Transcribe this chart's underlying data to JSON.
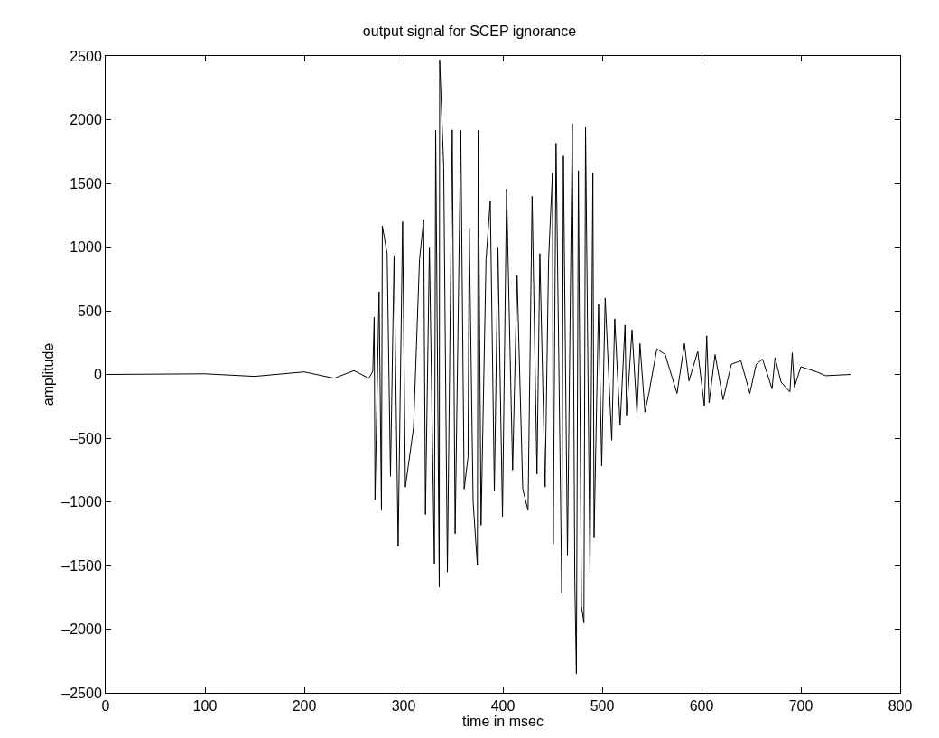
{
  "chart_data": {
    "type": "line",
    "title": "output signal for SCEP ignorance",
    "xlabel": "time in msec",
    "ylabel": "amplitude",
    "x": [
      0,
      100,
      150,
      200,
      230,
      250,
      265,
      269,
      270.4,
      271.2,
      275.3,
      277.7,
      278.6,
      283.4,
      286.8,
      290.4,
      294.5,
      299,
      301.8,
      310,
      316,
      320.2,
      322,
      326,
      331,
      332.3,
      335.9,
      336.3,
      340.4,
      344.1,
      349,
      351.9,
      357.6,
      361,
      364.9,
      366.1,
      370,
      374.3,
      375.1,
      378,
      383,
      387.3,
      391.4,
      395,
      399.6,
      403.7,
      409.8,
      414.3,
      420,
      425.3,
      429.4,
      434.3,
      437.2,
      442.5,
      446,
      449.9,
      450.7,
      453.5,
      459.3,
      460.9,
      465,
      469.9,
      472.4,
      474,
      476,
      479.1,
      481.6,
      483.2,
      487.7,
      490.6,
      491.8,
      496.3,
      499.5,
      503,
      509.6,
      512.6,
      518,
      523,
      524.5,
      530,
      535,
      538,
      543,
      547,
      555,
      563.4,
      575.3,
      582.8,
      587.3,
      596.2,
      602.8,
      605.2,
      607.6,
      613.6,
      621.7,
      630,
      639.6,
      648.6,
      655,
      661.4,
      671,
      674,
      680,
      689,
      691.3,
      693.5,
      700,
      716,
      725,
      750
    ],
    "series": [
      {
        "color": "#000000",
        "values": [
          0,
          5,
          -15,
          20,
          -30,
          30,
          -30,
          25,
          449,
          -983,
          649,
          -1067,
          1165,
          948,
          -800,
          931,
          -1350,
          1199,
          -884,
          -418,
          900,
          1216,
          -1100,
          1000,
          -1485,
          1915,
          -1668,
          2470,
          1631,
          -1551,
          1920,
          -1250,
          1915,
          -900,
          -650,
          1149,
          -1000,
          -1500,
          1915,
          -1184,
          900,
          1365,
          -918,
          1000,
          -1117,
          1455,
          -751,
          781,
          -900,
          -1067,
          1398,
          -784,
          948,
          -884,
          900,
          1582,
          -1333,
          1815,
          -1718,
          1715,
          -1418,
          1970,
          -1618,
          -2350,
          1600,
          -1818,
          -1951,
          1940,
          -1568,
          1582,
          -1284,
          551,
          -718,
          600,
          -516,
          437,
          -400,
          388,
          -320,
          350,
          -308,
          242,
          -296,
          -149,
          200,
          156,
          -149,
          242,
          -51,
          180,
          -247,
          303,
          -222,
          156,
          -198,
          80,
          107,
          -149,
          80,
          120,
          -112,
          132,
          -60,
          -137,
          169,
          -100,
          60,
          20,
          -10,
          0
        ]
      }
    ],
    "xlim": [
      0,
      800
    ],
    "xticks": [
      0,
      100,
      200,
      300,
      400,
      500,
      600,
      700,
      800
    ],
    "ylim": [
      -2500,
      2500
    ],
    "yticks": [
      {
        "value": -2500,
        "label": "–2500"
      },
      {
        "value": -2000,
        "label": "–2000"
      },
      {
        "value": -1500,
        "label": "–1500"
      },
      {
        "value": -1000,
        "label": "–1000"
      },
      {
        "value": -500,
        "label": "–500"
      },
      0,
      500,
      1000,
      1500,
      2000,
      2500
    ],
    "marker": "none",
    "line_style": "solid"
  }
}
